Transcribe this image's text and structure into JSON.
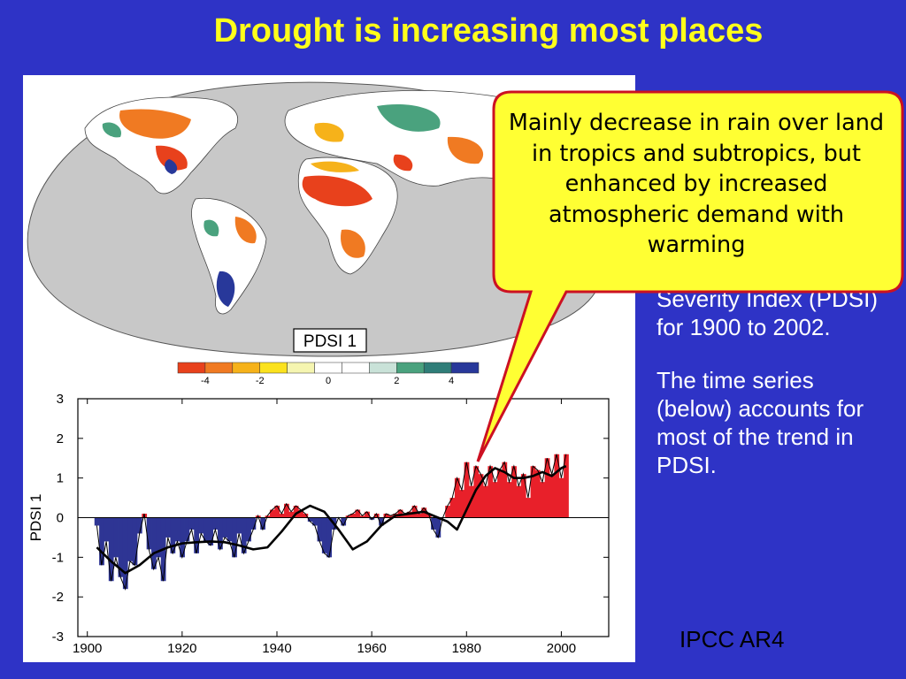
{
  "slide": {
    "title": "Drought is increasing most places",
    "callout": "Mainly decrease in rain over land in tropics and subtropics, but enhanced by increased atmospheric demand with warming",
    "side_text_1": "Severity Index (PDSI) for 1900 to 2002.",
    "side_text_2": "The time series (below) accounts for most of the trend in PDSI.",
    "source": "IPCC AR4"
  },
  "map": {
    "label": "PDSI 1",
    "colorbar": {
      "colors": [
        "#e8411c",
        "#f07a22",
        "#f6b21a",
        "#fbe21e",
        "#f5f5b0",
        "#ffffff",
        "#ffffff",
        "#c9e2d8",
        "#4aa27e",
        "#2f7d78",
        "#28389a"
      ],
      "tick_labels": [
        "-4",
        "-2",
        "0",
        "2",
        "4"
      ]
    }
  },
  "chart_data": {
    "type": "area",
    "ylabel": "PDSI 1",
    "xlabel": "",
    "xlim": [
      1898,
      2010
    ],
    "ylim": [
      -3,
      3
    ],
    "x_ticks": [
      1900,
      1920,
      1940,
      1960,
      1980,
      2000
    ],
    "y_ticks": [
      3,
      2,
      1,
      0,
      -1,
      -2,
      -3
    ],
    "colors": {
      "positive": "#e8202a",
      "negative": "#2e3594",
      "smooth": "#000000"
    },
    "series": [
      {
        "x": [
          1902,
          1903,
          1904,
          1905,
          1906,
          1907,
          1908,
          1909,
          1910,
          1911,
          1912,
          1913,
          1914,
          1915,
          1916,
          1917,
          1918,
          1919,
          1920,
          1921,
          1922,
          1923,
          1924,
          1925,
          1926,
          1927,
          1928,
          1929,
          1930,
          1931,
          1932,
          1933,
          1934,
          1935,
          1936,
          1937,
          1938,
          1939,
          1940,
          1941,
          1942,
          1943,
          1944,
          1945,
          1946,
          1947,
          1948,
          1949,
          1950,
          1951,
          1952,
          1953,
          1954,
          1955,
          1956,
          1957,
          1958,
          1959,
          1960,
          1961,
          1962,
          1963,
          1964,
          1965,
          1966,
          1967,
          1968,
          1969,
          1970,
          1971,
          1972,
          1973,
          1974,
          1975,
          1976,
          1977,
          1978,
          1979,
          1980,
          1981,
          1982,
          1983,
          1984,
          1985,
          1986,
          1987,
          1988,
          1989,
          1990,
          1991,
          1992,
          1993,
          1994,
          1995,
          1996,
          1997,
          1998,
          1999,
          2000,
          2001
        ],
        "values": [
          -0.2,
          -1.2,
          -0.6,
          -1.6,
          -1.0,
          -1.5,
          -1.8,
          -1.1,
          -1.2,
          -0.4,
          0.1,
          -0.8,
          -1.3,
          -1.0,
          -1.6,
          -0.5,
          -0.9,
          -0.6,
          -1.0,
          -0.6,
          -0.3,
          -0.9,
          -0.4,
          -0.6,
          -0.7,
          -0.3,
          -0.8,
          -0.5,
          -0.6,
          -1.0,
          -0.4,
          -0.9,
          -0.6,
          -0.3,
          0.05,
          -0.3,
          0.05,
          0.2,
          0.3,
          0.1,
          0.35,
          0.15,
          0.3,
          0.2,
          0.1,
          -0.1,
          -0.2,
          -0.6,
          -0.9,
          -1.0,
          -0.3,
          0.0,
          -0.2,
          0.05,
          0.1,
          0.2,
          0.05,
          0.15,
          -0.05,
          0.1,
          -0.2,
          0.1,
          0.05,
          0.1,
          0.2,
          0.1,
          0.15,
          0.3,
          0.1,
          0.25,
          0.1,
          -0.3,
          -0.5,
          0.0,
          0.3,
          0.5,
          1.0,
          0.7,
          1.4,
          0.8,
          1.3,
          1.1,
          0.8,
          1.3,
          0.9,
          1.2,
          1.4,
          0.9,
          1.3,
          0.8,
          1.1,
          0.5,
          1.3,
          1.2,
          0.9,
          1.5,
          1.1,
          1.6,
          1.0,
          1.6
        ]
      },
      {
        "name": "smoothed",
        "x": [
          1902,
          1905,
          1908,
          1911,
          1914,
          1917,
          1920,
          1923,
          1926,
          1929,
          1932,
          1935,
          1938,
          1941,
          1944,
          1947,
          1950,
          1953,
          1956,
          1959,
          1962,
          1965,
          1968,
          1971,
          1974,
          1976,
          1978,
          1980,
          1982,
          1984,
          1986,
          1988,
          1990,
          1992,
          1994,
          1996,
          1998,
          2000,
          2001
        ],
        "values": [
          -0.75,
          -1.1,
          -1.4,
          -1.2,
          -0.9,
          -0.75,
          -0.65,
          -0.62,
          -0.6,
          -0.62,
          -0.7,
          -0.8,
          -0.75,
          -0.35,
          0.1,
          0.3,
          0.15,
          -0.3,
          -0.8,
          -0.6,
          -0.2,
          0.05,
          0.1,
          0.15,
          0.0,
          -0.1,
          -0.3,
          0.2,
          0.7,
          1.05,
          1.25,
          1.15,
          1.0,
          1.0,
          1.05,
          1.15,
          1.05,
          1.25,
          1.3
        ]
      }
    ]
  }
}
